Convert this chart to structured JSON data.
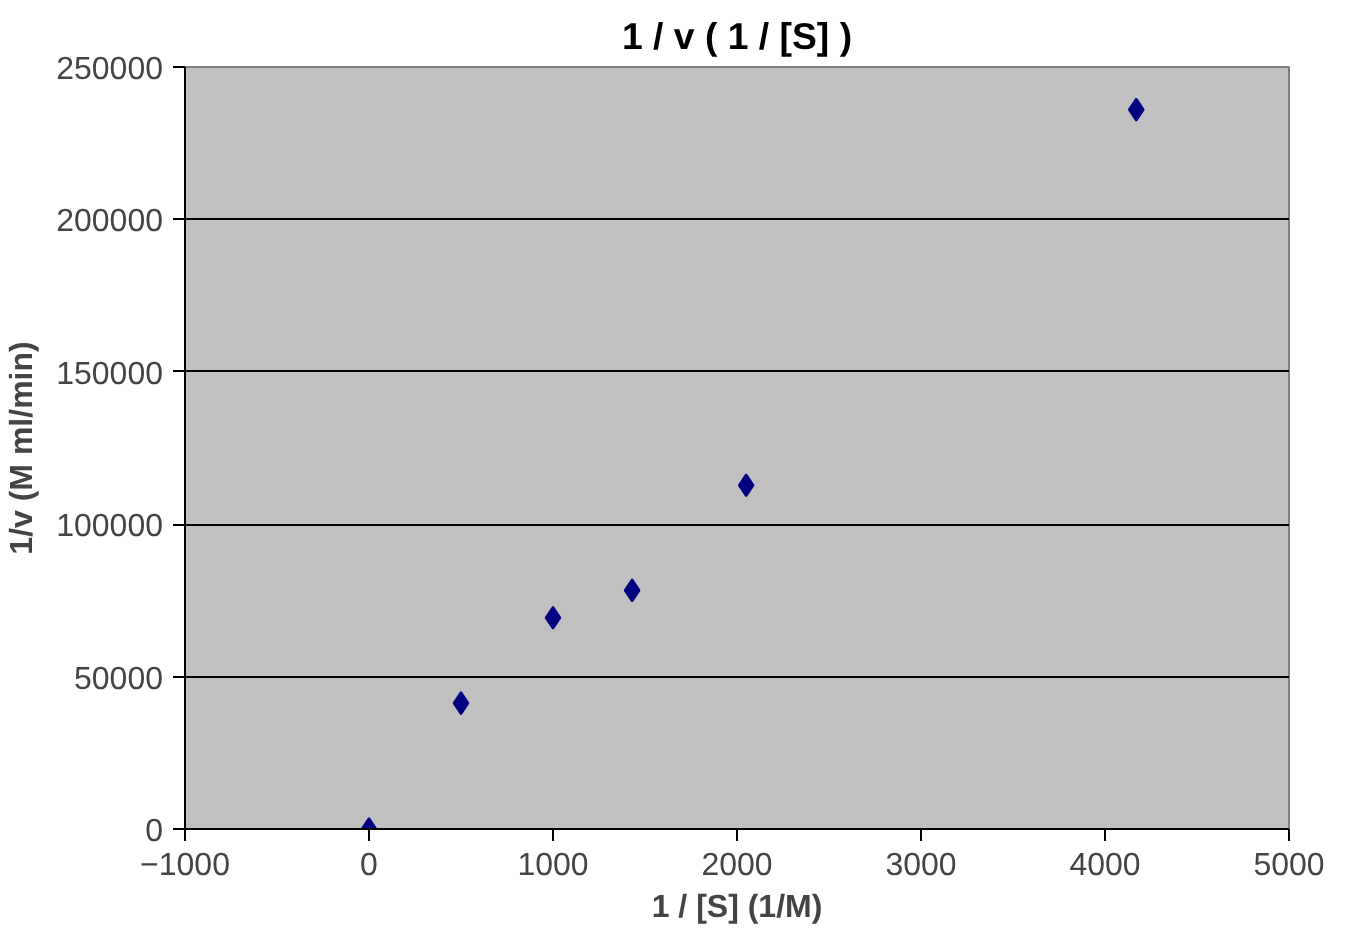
{
  "chart_data": {
    "type": "scatter",
    "title": "1 / v ( 1 / [S] )",
    "xlabel": "1 / [S] (1/M)",
    "ylabel": "1/v (M ml/min)",
    "x": [
      0,
      500,
      1000,
      1430,
      2050,
      4170
    ],
    "series": [
      {
        "color": "#000080",
        "values": [
          0,
          41300,
          69300,
          78300,
          112800,
          236000
        ]
      }
    ],
    "xlim": [
      -1000,
      5000
    ],
    "xticks": [
      -1000,
      0,
      1000,
      2000,
      3000,
      4000,
      5000
    ],
    "ylim": [
      0,
      250000
    ],
    "yticks": [
      0,
      50000,
      100000,
      150000,
      200000,
      250000
    ],
    "grid": "y",
    "marker": "diamond"
  }
}
